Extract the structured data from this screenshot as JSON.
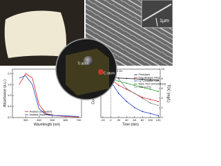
{
  "labels": {
    "scale_bar": "1μm",
    "ti_atom": "Ti atom",
    "c_atom": "C atom"
  },
  "chart_data": [
    {
      "type": "line",
      "xlabel": "Wavelength (nm)",
      "ylabel": "Absorbance (a.u.)",
      "x": [
        250,
        300,
        350,
        400,
        450,
        500,
        600,
        700
      ],
      "series": [
        {
          "name": "Anatase (calculated)",
          "color": "#d62728",
          "values": [
            1.5,
            2.0,
            1.8,
            0.6,
            0.2,
            0.1,
            0.05,
            0.02
          ]
        },
        {
          "name": "Anatase (experiment)",
          "color": "#1f3fbf",
          "values": [
            1.8,
            1.9,
            1.5,
            0.4,
            0.15,
            0.1,
            0.08,
            0.05
          ]
        }
      ],
      "xlim": [
        200,
        720
      ],
      "xticks": [
        300,
        400,
        500,
        600,
        700
      ],
      "ylim": [
        0,
        2.2
      ],
      "yticks": [
        {
          "value": 0,
          "label": "0.0"
        },
        {
          "value": 0.5,
          "label": "0.5"
        },
        {
          "value": 1,
          "label": "1.0"
        },
        {
          "value": 1.5,
          "label": "1.5"
        },
        {
          "value": 2,
          "label": "2.0"
        }
      ],
      "legend": "lower-left"
    },
    {
      "type": "line",
      "xlabel": "Time (min)",
      "ylabel": "Concentration",
      "y2label": "TOC (mg/L)",
      "annotation": "Light On",
      "x": [
        -20,
        0,
        20,
        40,
        60,
        80,
        100,
        120
      ],
      "series": [
        {
          "name": "Photolysis",
          "color": "#222222",
          "values": [
            1,
            1,
            0.98,
            0.97,
            0.96,
            0.95,
            0.94,
            0.93
          ]
        },
        {
          "name": "Pure Anatase Fiber",
          "color": "#d62728",
          "values": [
            1,
            0.95,
            0.8,
            0.7,
            0.6,
            0.5,
            0.45,
            0.4
          ]
        },
        {
          "name": "C(T) Anatase Fiber",
          "color": "#1f3fbf",
          "values": [
            1,
            0.9,
            0.6,
            0.4,
            0.25,
            0.15,
            0.1,
            0.05
          ]
        },
        {
          "name": "Nano TiO2 (immobilized)",
          "color": "#2ca02c",
          "values": [
            1,
            0.97,
            0.9,
            0.85,
            0.8,
            0.75,
            0.7,
            0.65
          ]
        },
        {
          "name": "TOC (C(T))",
          "color": "#888888",
          "axis": "y2",
          "values": [
            9,
            9,
            8,
            6,
            5,
            4,
            3,
            2.5
          ]
        }
      ],
      "xlim": [
        -25,
        125
      ],
      "xticks": [
        -20,
        0,
        20,
        40,
        60,
        80,
        100,
        120
      ],
      "ylim": [
        0,
        1.2
      ],
      "yticks": [],
      "y2lim": [
        0,
        10
      ],
      "y2ticks": [
        0,
        2,
        4,
        6,
        8,
        10
      ],
      "legend": "upper-right"
    }
  ]
}
